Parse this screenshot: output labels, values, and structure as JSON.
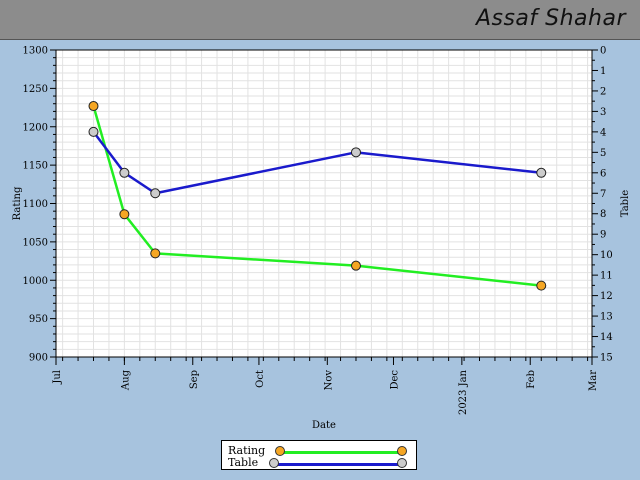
{
  "header": {
    "name": "Assaf Shahar"
  },
  "colors": {
    "rating_line": "#22ee22",
    "rating_marker": "#f5a623",
    "table_line": "#1a1acc",
    "table_marker": "#cccccc",
    "header_bg": "#8c8c8c",
    "page_bg": "#a7c3de"
  },
  "legend": {
    "placement": "bottom-center",
    "rating_label": "Rating",
    "table_label": "Table"
  },
  "chart_data": {
    "type": "line",
    "xlabel": "Date",
    "ylabel": "Rating",
    "y2label": "Table",
    "xlim": [
      "2022-07-01",
      "2023-03-01"
    ],
    "x_ticks": [
      "Jul",
      "Aug",
      "Sep",
      "Oct",
      "Nov",
      "Dec",
      "2023 Jan",
      "Feb",
      "Mar"
    ],
    "ylim": [
      900,
      1300
    ],
    "y_ticks": [
      900,
      950,
      1000,
      1050,
      1100,
      1150,
      1200,
      1250,
      1300
    ],
    "y2lim": [
      0,
      15
    ],
    "y2_inverted": true,
    "y2_ticks": [
      0,
      1,
      2,
      3,
      4,
      5,
      6,
      7,
      8,
      9,
      10,
      11,
      12,
      13,
      14,
      15
    ],
    "grid": true,
    "series": [
      {
        "name": "Rating",
        "axis": "left",
        "points": [
          {
            "x": "2022-07-18",
            "y": 1227
          },
          {
            "x": "2022-08-01",
            "y": 1086
          },
          {
            "x": "2022-08-15",
            "y": 1035
          },
          {
            "x": "2022-11-14",
            "y": 1019
          },
          {
            "x": "2023-02-06",
            "y": 993
          }
        ]
      },
      {
        "name": "Table",
        "axis": "right",
        "points": [
          {
            "x": "2022-07-18",
            "y": 4
          },
          {
            "x": "2022-08-01",
            "y": 6
          },
          {
            "x": "2022-08-15",
            "y": 7
          },
          {
            "x": "2022-11-14",
            "y": 5
          },
          {
            "x": "2023-02-06",
            "y": 6
          }
        ]
      }
    ]
  }
}
